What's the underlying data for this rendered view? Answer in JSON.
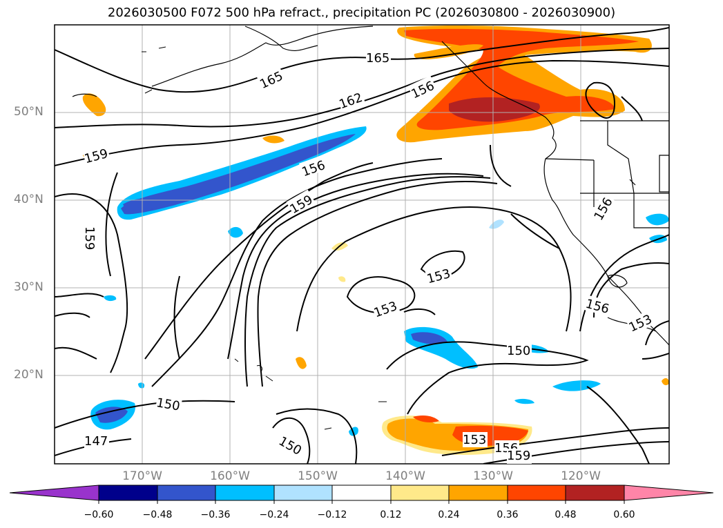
{
  "title": "2026030500 F072 500 hPa refract., precipitation PC (2026030800 - 2026030900)",
  "map": {
    "latitude_labels": [
      "50°N",
      "40°N",
      "30°N",
      "20°N"
    ],
    "longitude_labels": [
      "170°W",
      "160°W",
      "150°W",
      "140°W",
      "130°W",
      "120°W"
    ],
    "contour_labels": [
      "165",
      "165",
      "162",
      "156",
      "159",
      "156",
      "159",
      "159",
      "153",
      "153",
      "150",
      "150",
      "150",
      "147",
      "153",
      "156",
      "159",
      "156",
      "156",
      "153"
    ]
  },
  "colorbar": {
    "ticks": [
      "−0.60",
      "−0.48",
      "−0.36",
      "−0.24",
      "−0.12",
      "0.12",
      "0.24",
      "0.36",
      "0.48",
      "0.60"
    ],
    "colors": [
      "#9933cc",
      "#00008b",
      "#3355cc",
      "#00bfff",
      "#b0e2ff",
      "#ffffff",
      "#ffe98a",
      "#ffa500",
      "#ff4500",
      "#b22222",
      "#ff85a8"
    ]
  }
}
